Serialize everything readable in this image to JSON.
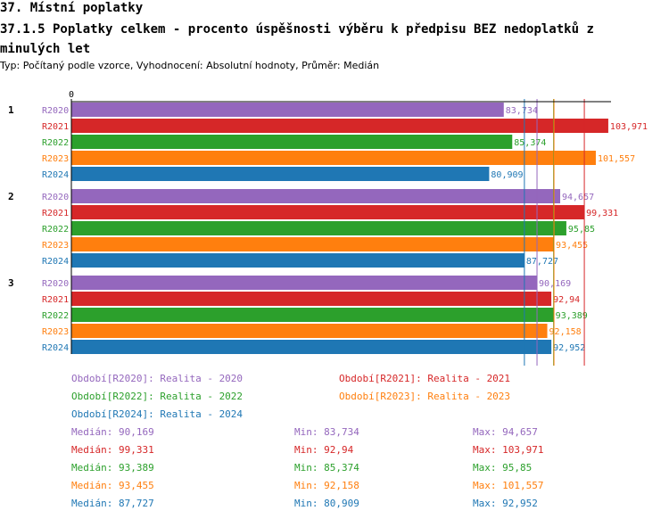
{
  "header": {
    "title": "37. Místní poplatky",
    "subtitle_main": "37.1.5 Poplatky celkem - procento úspěšnosti výběru k předpisu BEZ nedoplatků z minulých let",
    "type_line": "Typ: Počítaný podle vzorce, Vyhodnocení: Absolutní hodnoty, Průměr: Medián"
  },
  "colors": {
    "R2020": "#9467bd",
    "R2021": "#d62728",
    "R2022": "#2ca02c",
    "R2023": "#ff7f0e",
    "R2024": "#1f77b4"
  },
  "chart_data": {
    "type": "bar",
    "orientation": "horizontal",
    "axis_zero_label": "0",
    "series_names": [
      "R2020",
      "R2021",
      "R2022",
      "R2023",
      "R2024"
    ],
    "groups": [
      {
        "label": "1",
        "values": [
          83.734,
          103.971,
          85.374,
          101.557,
          80.909
        ],
        "value_labels": [
          "83,734",
          "103,971",
          "85,374",
          "101,557",
          "80,909"
        ]
      },
      {
        "label": "2",
        "values": [
          94.657,
          99.331,
          95.85,
          93.455,
          87.727
        ],
        "value_labels": [
          "94,657",
          "99,331",
          "95,85",
          "93,455",
          "87,727"
        ]
      },
      {
        "label": "3",
        "values": [
          90.169,
          92.94,
          93.389,
          92.158,
          92.952
        ],
        "value_labels": [
          "90,169",
          "92,94",
          "93,389",
          "92,158",
          "92,952"
        ]
      }
    ],
    "medians": [
      90.169,
      99.331,
      93.389,
      93.455,
      87.727
    ],
    "xlim": [
      0,
      104.5
    ]
  },
  "legend": [
    {
      "key": "R2020",
      "text": "Období[R2020]: Realita - 2020"
    },
    {
      "key": "R2021",
      "text": "Období[R2021]: Realita - 2021"
    },
    {
      "key": "R2022",
      "text": "Období[R2022]: Realita - 2022"
    },
    {
      "key": "R2023",
      "text": "Období[R2023]: Realita - 2023"
    },
    {
      "key": "R2024",
      "text": "Období[R2024]: Realita - 2024"
    }
  ],
  "stats": [
    {
      "key": "R2020",
      "median": "Medián: 90,169",
      "min": "Min: 83,734",
      "max": "Max: 94,657"
    },
    {
      "key": "R2021",
      "median": "Medián: 99,331",
      "min": "Min: 92,94",
      "max": "Max: 103,971"
    },
    {
      "key": "R2022",
      "median": "Medián: 93,389",
      "min": "Min: 85,374",
      "max": "Max: 95,85"
    },
    {
      "key": "R2023",
      "median": "Medián: 93,455",
      "min": "Min: 92,158",
      "max": "Max: 101,557"
    },
    {
      "key": "R2024",
      "median": "Medián: 87,727",
      "min": "Min: 80,909",
      "max": "Max: 92,952"
    }
  ]
}
